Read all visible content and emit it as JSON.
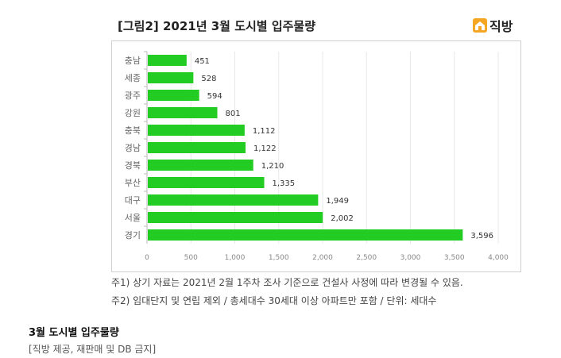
{
  "header": {
    "title": "[그림2] 2021년 3월 도시별 입주물량",
    "brand": "직방"
  },
  "chart_data": {
    "type": "bar",
    "orientation": "horizontal",
    "categories": [
      "충남",
      "세종",
      "광주",
      "강원",
      "충북",
      "경남",
      "경북",
      "부산",
      "대구",
      "서울",
      "경기"
    ],
    "values": [
      451,
      528,
      594,
      801,
      1112,
      1122,
      1210,
      1335,
      1949,
      2002,
      3596
    ],
    "value_labels": [
      "451",
      "528",
      "594",
      "801",
      "1,112",
      "1,122",
      "1,210",
      "1,335",
      "1,949",
      "2,002",
      "3,596"
    ],
    "xlim": [
      0,
      4000
    ],
    "x_ticks": [
      0,
      500,
      1000,
      1500,
      2000,
      2500,
      3000,
      3500,
      4000
    ],
    "x_tick_labels": [
      "0",
      "500",
      "1,000",
      "1,500",
      "2,000",
      "2,500",
      "3,000",
      "3,500",
      "4,000"
    ],
    "bar_color": "#22cc22",
    "grid": true
  },
  "notes": [
    "주1) 상기 자료는 2021년 2월 1주차 조사 기준으로 건설사 사정에 따라 변경될 수 있음.",
    "주2) 임대단지 및 연립 제외 / 총세대수 30세대 이상 아파트만 포함 / 단위: 세대수"
  ],
  "caption": "3월 도시별 입주물량",
  "credit": "[직방 제공, 재판매 및 DB 금지]"
}
